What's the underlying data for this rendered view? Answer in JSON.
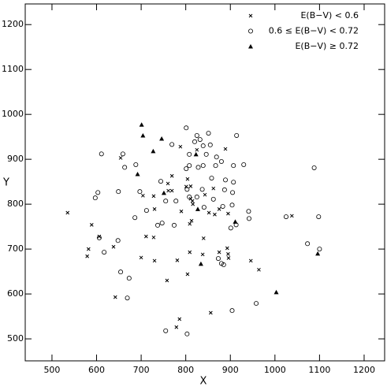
{
  "chart_data": {
    "type": "scatter",
    "xlabel": "X",
    "ylabel": "Y",
    "xlim": [
      440,
      1246
    ],
    "ylim": [
      451,
      1246
    ],
    "xticks": [
      500,
      600,
      700,
      800,
      900,
      1000,
      1100,
      1200
    ],
    "yticks": [
      500,
      600,
      700,
      800,
      900,
      1000,
      1100,
      1200
    ],
    "legend": "upper right",
    "series": [
      {
        "name": "E(B−V) < 0.6",
        "marker": "x",
        "color": "#000000",
        "x": [
          654,
          788,
          825,
          889,
          769,
          804,
          760,
          761,
          769,
          801,
          811,
          862,
          704,
          728,
          843,
          811,
          815,
          816,
          790,
          852,
          865,
          813,
          809,
          875,
          895,
          730,
          535,
          589,
          1038,
          606,
          711,
          728,
          840,
          582,
          638,
          579,
          700,
          730,
          781,
          809,
          838,
          875,
          893,
          895,
          896,
          946,
          964,
          758,
          804,
          642,
          856,
          786,
          779
        ],
        "y": [
          903,
          928,
          921,
          923,
          863,
          856,
          846,
          830,
          830,
          839,
          840,
          835,
          819,
          818,
          821,
          812,
          807,
          800,
          784,
          781,
          777,
          763,
          756,
          789,
          779,
          789,
          781,
          754,
          774,
          728,
          728,
          726,
          724,
          700,
          705,
          684,
          681,
          674,
          675,
          693,
          688,
          693,
          702,
          689,
          680,
          674,
          654,
          630,
          644,
          593,
          558,
          544,
          526
        ]
      },
      {
        "name": "0.6 ≤ E(B−V) < 0.72",
        "marker": "o",
        "color": "#000000",
        "x": [
          801,
          825,
          851,
          914,
          769,
          820,
          832,
          839,
          855,
          611,
          659,
          808,
          846,
          869,
          880,
          808,
          839,
          867,
          907,
          801,
          828,
          688,
          663,
          930,
          858,
          889,
          744,
          803,
          837,
          887,
          907,
          905,
          697,
          649,
          603,
          597,
          755,
          778,
          808,
          825,
          841,
          862,
          883,
          904,
          941,
          942,
          686,
          712,
          747,
          901,
          913,
          1025,
          1098,
          1088,
          606,
          648,
          617,
          737,
          873,
          880,
          885,
          654,
          673,
          669,
          755,
          803,
          904,
          958,
          1073,
          1100,
          774
        ],
        "y": [
          970,
          953,
          958,
          953,
          933,
          939,
          944,
          930,
          932,
          912,
          912,
          911,
          911,
          905,
          895,
          886,
          886,
          886,
          886,
          879,
          882,
          888,
          882,
          888,
          858,
          854,
          851,
          833,
          833,
          832,
          849,
          826,
          828,
          828,
          826,
          814,
          807,
          807,
          816,
          816,
          793,
          811,
          795,
          798,
          784,
          768,
          770,
          786,
          758,
          747,
          754,
          772,
          772,
          881,
          725,
          719,
          693,
          753,
          679,
          668,
          665,
          649,
          635,
          591,
          518,
          511,
          563,
          579,
          712,
          700,
          753
        ]
      },
      {
        "name": "E(B−V) ≥ 0.72",
        "marker": "^",
        "color": "#000000",
        "x": [
          701,
          704,
          727,
          746,
          692,
          751,
          823,
          827,
          834,
          911,
          1003,
          1096
        ],
        "y": [
          977,
          953,
          918,
          946,
          867,
          825,
          911,
          789,
          667,
          761,
          604,
          690
        ]
      }
    ]
  }
}
